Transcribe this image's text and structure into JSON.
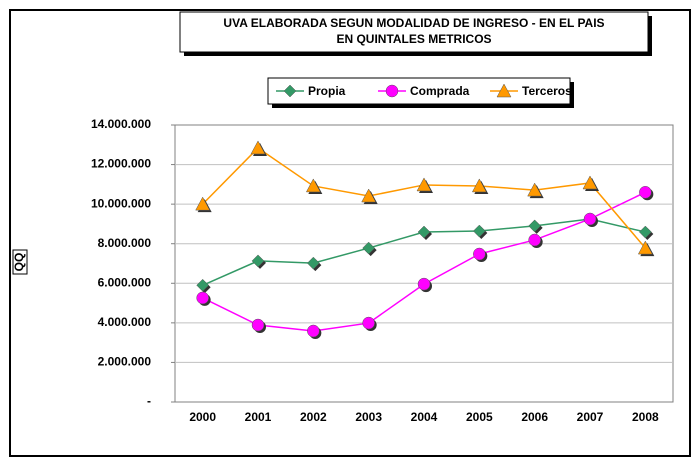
{
  "chart_data": {
    "type": "line",
    "title": [
      "UVA ELABORADA SEGUN MODALIDAD DE INGRESO - EN EL PAIS",
      "EN QUINTALES METRICOS"
    ],
    "y_label": "QQ",
    "categories": [
      "2000",
      "2001",
      "2002",
      "2003",
      "2004",
      "2005",
      "2006",
      "2007",
      "2008"
    ],
    "series": [
      {
        "name": "Propia",
        "color": "#339966",
        "marker": "diamond",
        "values": [
          5900000,
          7130000,
          7020000,
          7780000,
          8590000,
          8640000,
          8900000,
          9250000,
          8590000
        ]
      },
      {
        "name": "Comprada",
        "color": "#ff00ff",
        "marker": "circle",
        "values": [
          5260000,
          3890000,
          3590000,
          3990000,
          5960000,
          7480000,
          8190000,
          9250000,
          10600000
        ]
      },
      {
        "name": "Terceros",
        "color": "#ff9900",
        "marker": "triangle",
        "values": [
          10000000,
          12840000,
          10920000,
          10410000,
          10970000,
          10920000,
          10710000,
          11070000,
          7780000
        ]
      }
    ],
    "ylim": [
      0,
      14000000
    ],
    "yticks": [
      {
        "value": 0,
        "label": "-"
      },
      {
        "value": 2000000,
        "label": "2.000.000"
      },
      {
        "value": 4000000,
        "label": "4.000.000"
      },
      {
        "value": 6000000,
        "label": "6.000.000"
      },
      {
        "value": 8000000,
        "label": "8.000.000"
      },
      {
        "value": 10000000,
        "label": "10.000.000"
      },
      {
        "value": 12000000,
        "label": "12.000.000"
      },
      {
        "value": 14000000,
        "label": "14.000.000"
      }
    ],
    "grid": true,
    "legend": "top"
  }
}
